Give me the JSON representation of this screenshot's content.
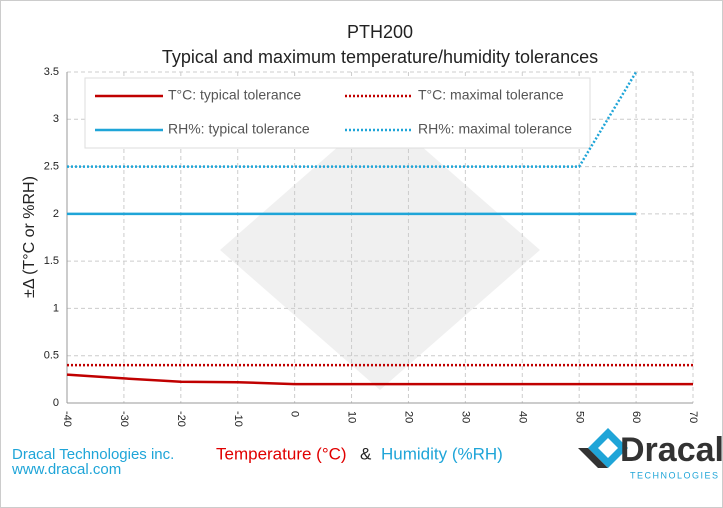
{
  "chart_data": {
    "type": "line",
    "title": "PTH200",
    "subtitle": "Typical and maximum temperature/humidity tolerances",
    "y_label": "±Δ (T°C or %RH)",
    "x": [
      -40,
      -30,
      -20,
      -10,
      0,
      10,
      20,
      30,
      40,
      50,
      60,
      70
    ],
    "series": [
      {
        "name": "T°C: typical tolerance",
        "color": "#c00000",
        "style": "solid",
        "values": [
          0.3,
          0.26,
          0.225,
          0.22,
          0.2,
          0.2,
          0.2,
          0.2,
          0.2,
          0.2,
          0.2,
          0.2
        ]
      },
      {
        "name": "T°C: maximal tolerance",
        "color": "#c00000",
        "style": "dotted",
        "values": [
          0.4,
          0.4,
          0.4,
          0.4,
          0.4,
          0.4,
          0.4,
          0.4,
          0.4,
          0.4,
          0.4,
          0.4
        ]
      },
      {
        "name": "RH%: typical tolerance",
        "color": "#1fa5d8",
        "style": "solid",
        "values": [
          2,
          2,
          2,
          2,
          2,
          2,
          2,
          2,
          2,
          2,
          2,
          null
        ]
      },
      {
        "name": "RH%: maximal tolerance",
        "color": "#1fa5d8",
        "style": "dotted",
        "values": [
          2.5,
          2.5,
          2.5,
          2.5,
          2.5,
          2.5,
          2.5,
          2.5,
          2.5,
          2.5,
          3.5,
          null
        ]
      }
    ],
    "xlim": [
      -40,
      70
    ],
    "xticks": [
      -40,
      -30,
      -20,
      -10,
      0,
      10,
      20,
      30,
      40,
      50,
      60,
      70
    ],
    "ylim": [
      0,
      3.5
    ],
    "yticks": [
      0,
      0.5,
      1,
      1.5,
      2,
      2.5,
      3,
      3.5
    ],
    "grid": true,
    "legend": "top-left"
  },
  "footer": {
    "company": "Dracal Technologies inc.",
    "website": "www.dracal.com",
    "temperature": "Temperature (°C)",
    "ampersand": "&",
    "humidity": "Humidity (%RH)",
    "logo": "Dracal",
    "logo_sub": "TECHNOLOGIES"
  }
}
